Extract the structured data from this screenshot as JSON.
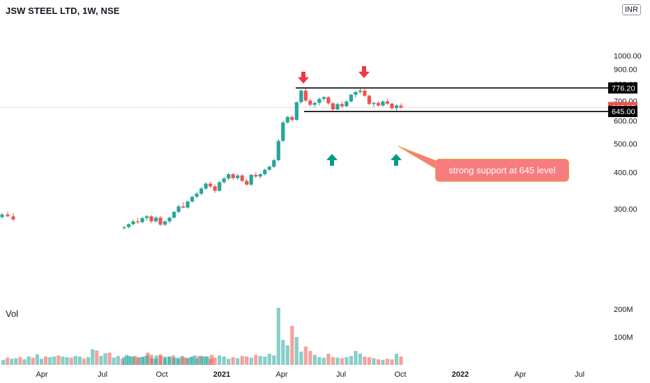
{
  "header": {
    "title": "JSW STEEL LTD, 1W, NSE"
  },
  "currency_label": "INR",
  "volume_label": "Vol",
  "callout": {
    "text": "strong support at 645 level"
  },
  "colors": {
    "up": "#26a69a",
    "down": "#ef5350",
    "arrow_up": "#089981",
    "arrow_down": "#f23645",
    "callout_bg": "#f77c80",
    "last_price_bg": "#ef5350"
  },
  "chart_data": {
    "type": "candlestick",
    "title": "JSW STEEL LTD, 1W, NSE",
    "y_axis": {
      "ticks": [
        "1000.00",
        "900.00",
        "800.00",
        "700.00",
        "600.00",
        "500.00",
        "400.00",
        "300.00"
      ],
      "scale": "log",
      "ylim": [
        235,
        1000
      ]
    },
    "volume_axis": {
      "ticks": [
        "200M",
        "100M"
      ]
    },
    "x_axis": {
      "ticks": [
        "Apr",
        "Jul",
        "Oct",
        "2021",
        "Apr",
        "Jul",
        "Oct",
        "2022",
        "Apr",
        "Jul"
      ]
    },
    "horizontal_levels": [
      {
        "label": "776.20",
        "value": 776.2
      },
      {
        "label": "645.00",
        "value": 645.0
      }
    ],
    "last_price": {
      "label": "665.85",
      "value": 665.85
    },
    "annotations": [
      {
        "type": "arrow-down",
        "near": "May 2021 high"
      },
      {
        "type": "arrow-down",
        "near": "Aug 2021 high"
      },
      {
        "type": "arrow-up",
        "near": "Jun 2021 low"
      },
      {
        "type": "arrow-up",
        "near": "Sep 2021 low"
      }
    ],
    "candles_early": [
      [
        281,
        291,
        278,
        287
      ],
      [
        287,
        294,
        281,
        283
      ],
      [
        283,
        290,
        272,
        276
      ]
    ],
    "candles": [
      [
        258,
        262,
        255,
        260
      ],
      [
        260,
        268,
        257,
        266
      ],
      [
        266,
        276,
        263,
        272
      ],
      [
        272,
        280,
        266,
        270
      ],
      [
        270,
        282,
        268,
        279
      ],
      [
        279,
        286,
        274,
        283
      ],
      [
        283,
        286,
        268,
        272
      ],
      [
        272,
        283,
        270,
        280
      ],
      [
        280,
        284,
        262,
        265
      ],
      [
        265,
        274,
        262,
        272
      ],
      [
        272,
        282,
        268,
        280
      ],
      [
        280,
        295,
        278,
        293
      ],
      [
        293,
        310,
        290,
        306
      ],
      [
        306,
        316,
        301,
        303
      ],
      [
        303,
        320,
        300,
        318
      ],
      [
        318,
        332,
        315,
        330
      ],
      [
        330,
        342,
        326,
        338
      ],
      [
        338,
        356,
        334,
        352
      ],
      [
        352,
        370,
        348,
        366
      ],
      [
        366,
        372,
        354,
        358
      ],
      [
        358,
        364,
        340,
        346
      ],
      [
        346,
        374,
        344,
        370
      ],
      [
        370,
        385,
        366,
        381
      ],
      [
        381,
        398,
        376,
        394
      ],
      [
        394,
        398,
        378,
        382
      ],
      [
        382,
        396,
        377,
        390
      ],
      [
        390,
        395,
        370,
        374
      ],
      [
        374,
        380,
        360,
        363
      ],
      [
        363,
        395,
        360,
        392
      ],
      [
        392,
        400,
        383,
        387
      ],
      [
        387,
        398,
        380,
        394
      ],
      [
        394,
        412,
        390,
        408
      ],
      [
        408,
        422,
        404,
        418
      ],
      [
        418,
        445,
        414,
        440
      ],
      [
        440,
        520,
        436,
        512
      ],
      [
        512,
        600,
        508,
        592
      ],
      [
        592,
        624,
        586,
        618
      ],
      [
        618,
        626,
        596,
        604
      ],
      [
        604,
        698,
        600,
        694
      ],
      [
        694,
        768,
        686,
        760
      ],
      [
        760,
        776,
        696,
        703
      ],
      [
        703,
        716,
        670,
        680
      ],
      [
        680,
        698,
        666,
        690
      ],
      [
        690,
        720,
        676,
        712
      ],
      [
        712,
        730,
        700,
        722
      ],
      [
        722,
        728,
        682,
        688
      ],
      [
        688,
        694,
        648,
        656
      ],
      [
        656,
        690,
        650,
        684
      ],
      [
        684,
        696,
        664,
        672
      ],
      [
        672,
        704,
        668,
        698
      ],
      [
        698,
        740,
        694,
        736
      ],
      [
        736,
        758,
        720,
        752
      ],
      [
        752,
        776,
        740,
        760
      ],
      [
        760,
        770,
        724,
        730
      ],
      [
        730,
        736,
        680,
        684
      ],
      [
        684,
        698,
        668,
        690
      ],
      [
        690,
        700,
        670,
        676
      ],
      [
        676,
        704,
        670,
        698
      ],
      [
        698,
        712,
        680,
        686
      ],
      [
        686,
        692,
        654,
        662
      ],
      [
        662,
        684,
        648,
        676
      ],
      [
        676,
        688,
        660,
        665.85
      ]
    ],
    "volume_millions_early": [
      18,
      26,
      22,
      24,
      28,
      20,
      30,
      26,
      38,
      22,
      30,
      28,
      30,
      34,
      30,
      28,
      26,
      32,
      30,
      22,
      28,
      56,
      52,
      32,
      42,
      44,
      26,
      32,
      22,
      36,
      30,
      32,
      28,
      30,
      44,
      24,
      34,
      38,
      30,
      30,
      34,
      26,
      32,
      26,
      28,
      34,
      32,
      30,
      30,
      36
    ],
    "volume_millions": [
      28,
      32,
      30,
      26,
      28,
      34,
      36,
      22,
      32,
      24,
      30,
      26,
      22,
      28,
      24,
      30,
      24,
      32,
      30,
      22,
      26,
      34,
      30,
      22,
      28,
      24,
      32,
      30,
      26,
      36,
      32,
      30,
      40,
      34,
      205,
      90,
      70,
      140,
      100,
      48,
      66,
      50,
      36,
      28,
      26,
      40,
      28,
      26,
      24,
      28,
      32,
      50,
      40,
      30,
      28,
      24,
      20,
      18,
      22,
      20,
      40,
      30,
      22
    ]
  }
}
